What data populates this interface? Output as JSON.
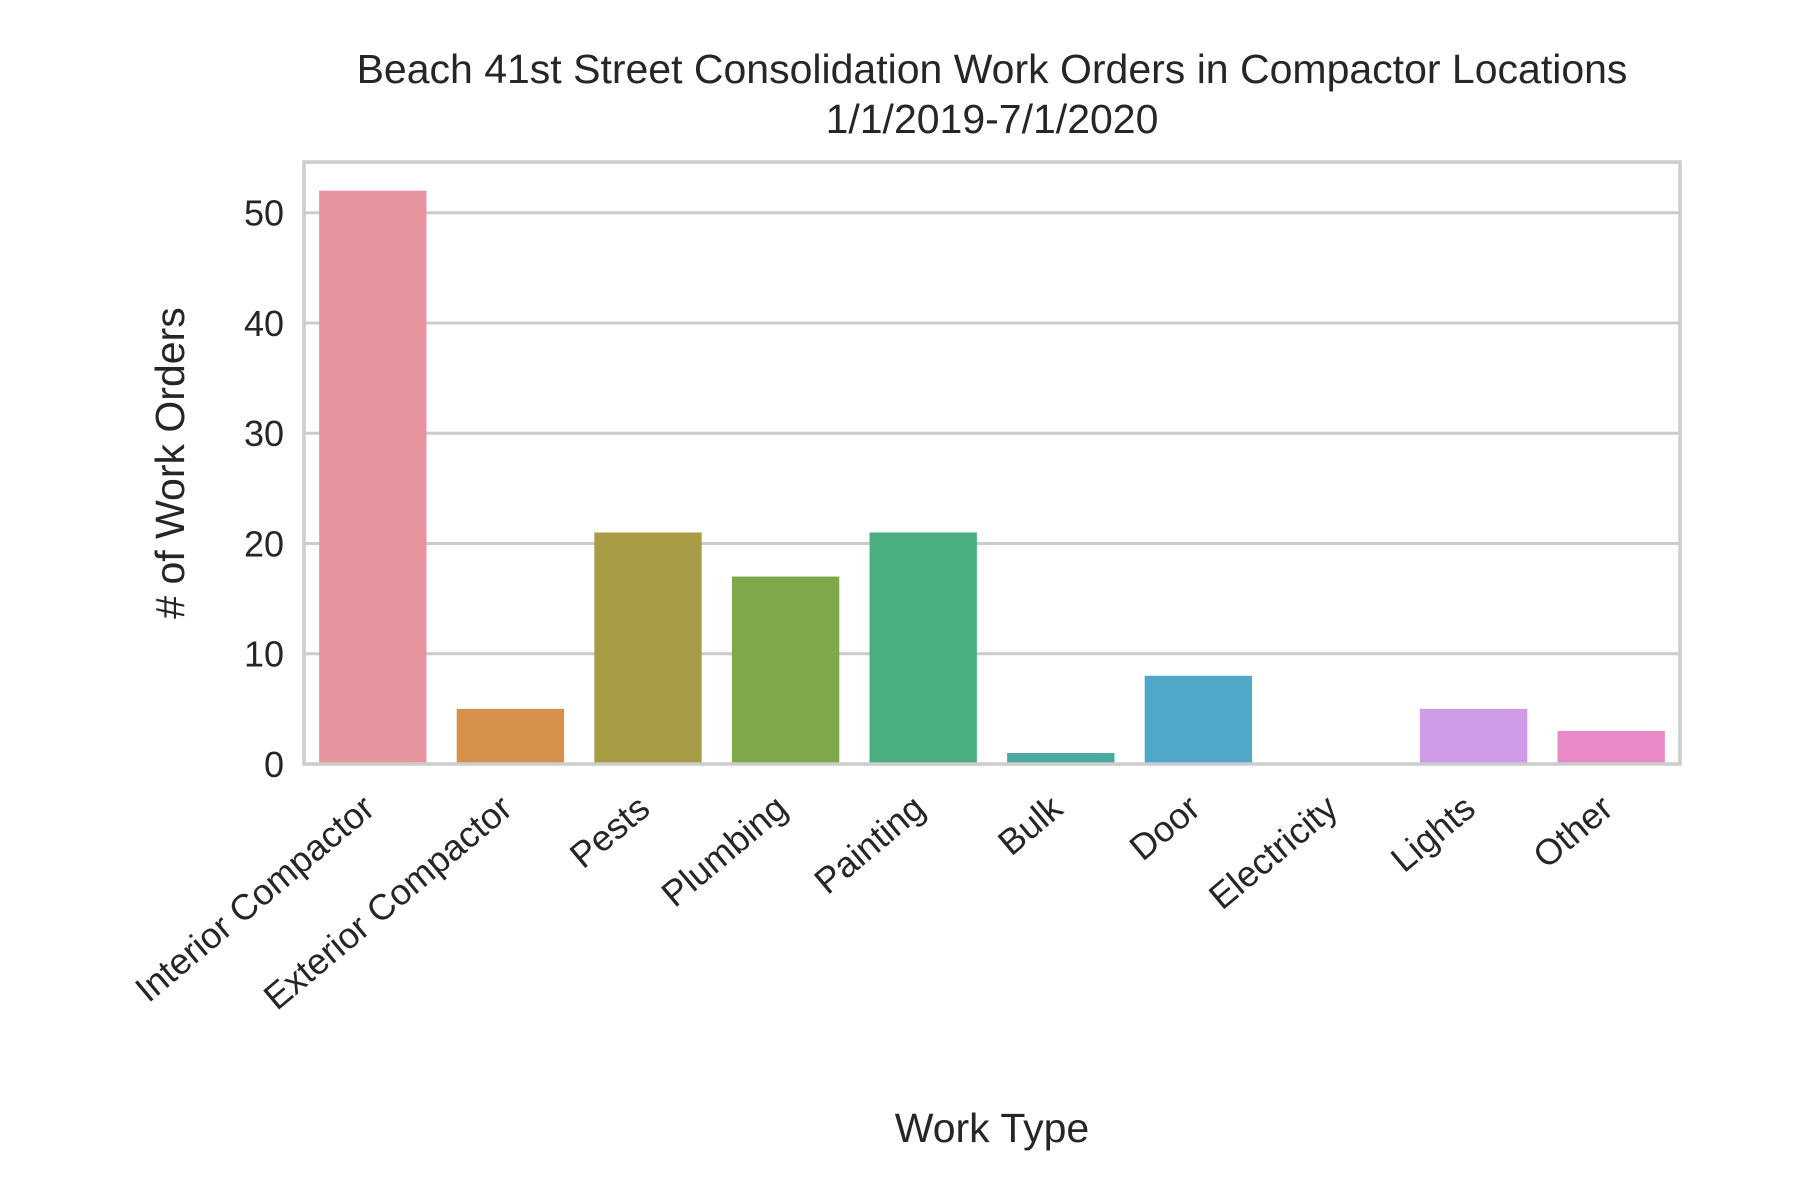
{
  "chart_data": {
    "type": "bar",
    "title": "Beach 41st Street Consolidation Work Orders in Compactor Locations",
    "subtitle": "1/1/2019-7/1/2020",
    "xlabel": "Work Type",
    "ylabel": "# of Work Orders",
    "categories": [
      "Interior Compactor",
      "Exterior Compactor",
      "Pests",
      "Plumbing",
      "Painting",
      "Bulk",
      "Door",
      "Electricity",
      "Lights",
      "Other"
    ],
    "values": [
      52,
      5,
      21,
      17,
      21,
      1,
      8,
      0,
      5,
      3
    ],
    "colors": [
      "#e8949f",
      "#d8914b",
      "#a89b45",
      "#7ea849",
      "#4aae80",
      "#4aa89e",
      "#4fa8c7",
      "#8aa2e6",
      "#cf9ae6",
      "#e98ac8"
    ],
    "yticks": [
      0,
      10,
      20,
      30,
      40,
      50
    ],
    "ylim": [
      0,
      54.6
    ],
    "grid": true,
    "legend": "none"
  }
}
